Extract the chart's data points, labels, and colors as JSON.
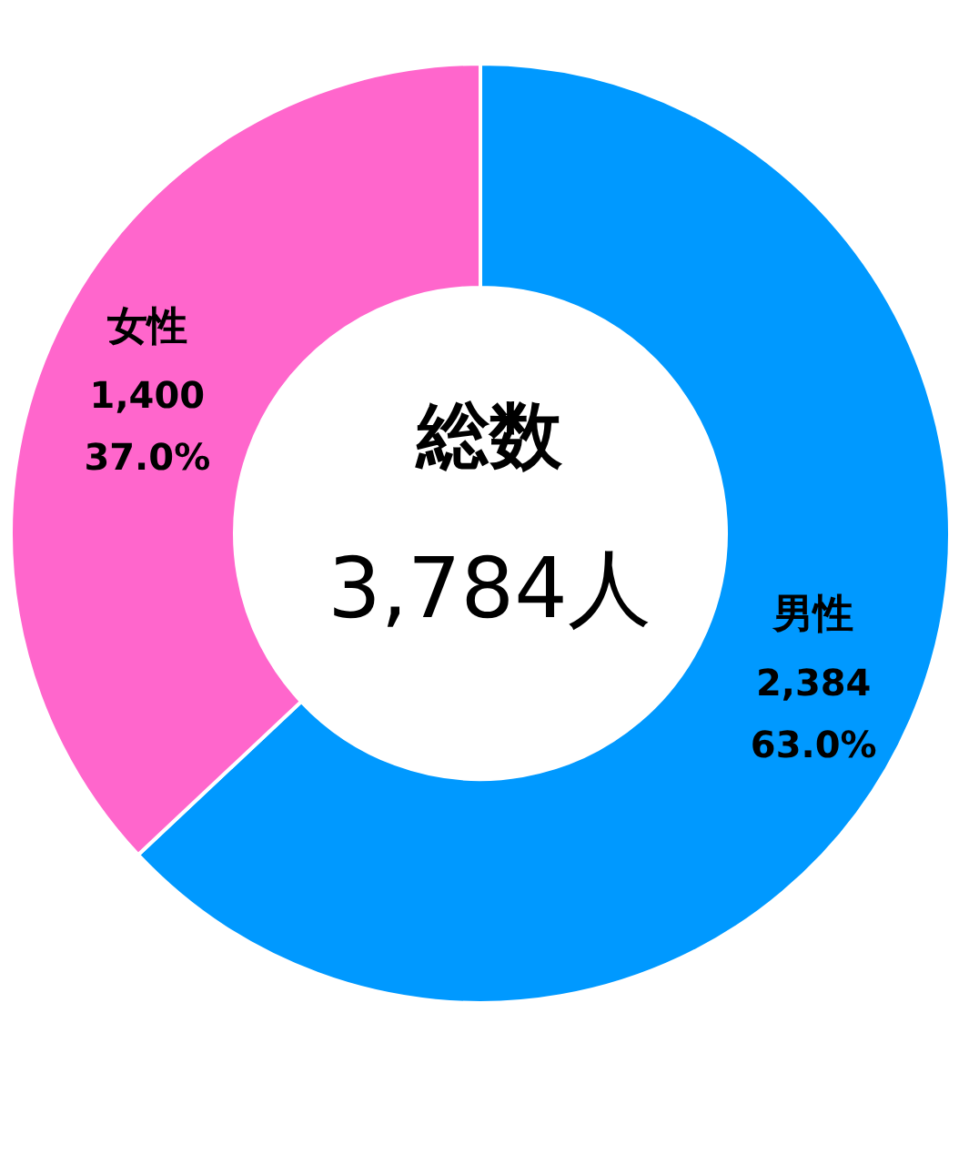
{
  "chart_data": {
    "type": "donut",
    "title": "総数",
    "subtitle": "3,784人",
    "categories": [
      "男性",
      "女性"
    ],
    "values": [
      2384,
      1400
    ],
    "colors": [
      "#0099ff",
      "#ff66cc"
    ],
    "value_labels": [
      "2,384\n63.0%",
      "1,400\n37.0%"
    ],
    "legend": false
  }
}
